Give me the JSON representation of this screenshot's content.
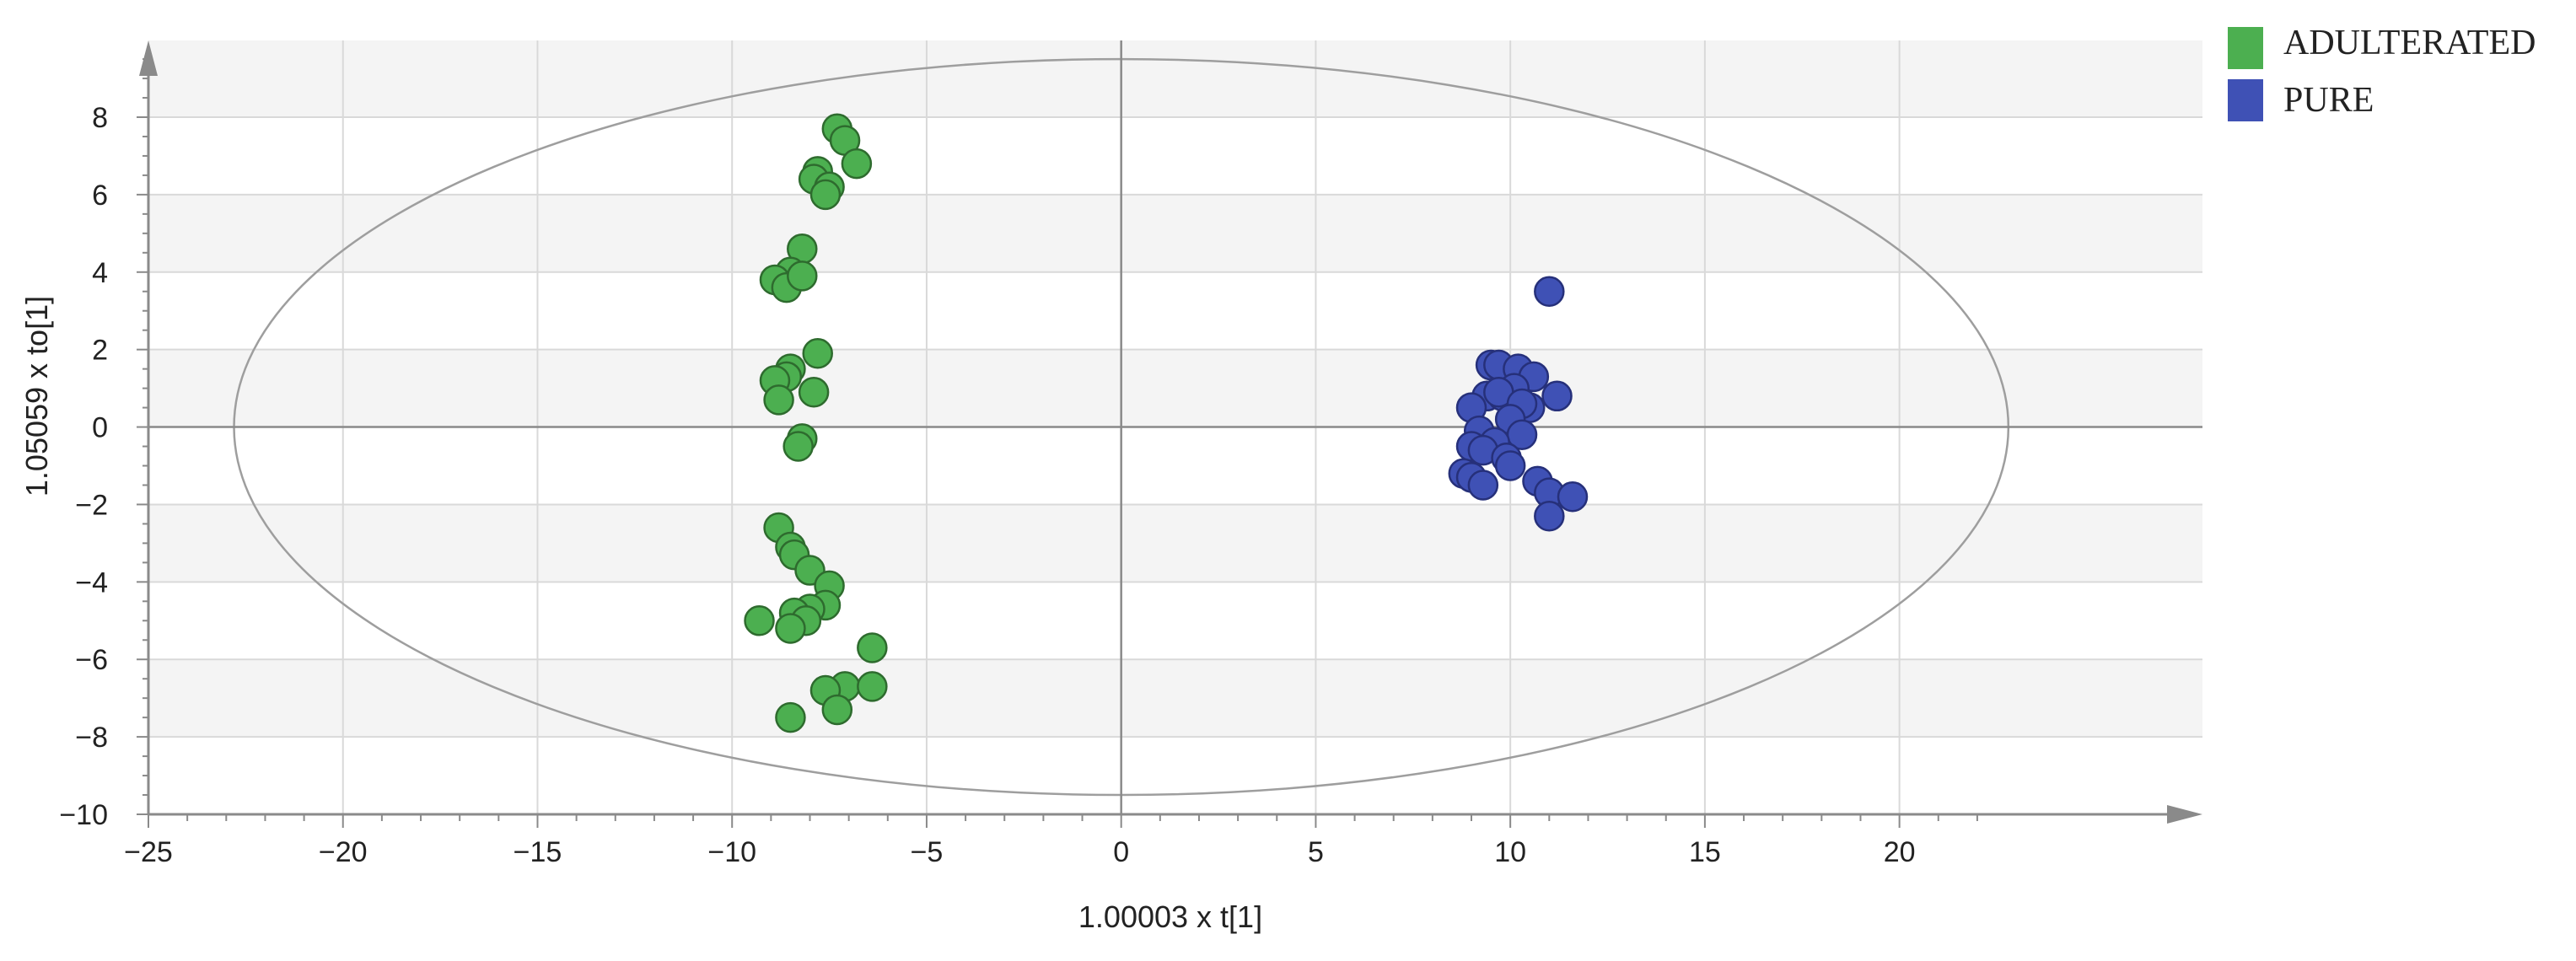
{
  "chart_data": {
    "type": "scatter",
    "title": "",
    "xlabel": "1.00003 x t[1]",
    "ylabel": "1.05059 x to[1]",
    "xlim": [
      -25,
      25
    ],
    "ylim": [
      -10,
      10
    ],
    "x_ticks": [
      -25,
      -20,
      -15,
      -10,
      -5,
      0,
      5,
      10,
      15,
      20
    ],
    "y_ticks": [
      -10,
      -8,
      -6,
      -4,
      -2,
      0,
      2,
      4,
      6,
      8
    ],
    "x_tick_labels": [
      "−25",
      "−20",
      "−15",
      "−10",
      "−5",
      "0",
      "5",
      "10",
      "15",
      "20"
    ],
    "y_tick_labels": [
      "−10",
      "−8",
      "−6",
      "−4",
      "−2",
      "0",
      "2",
      "4",
      "6",
      "8"
    ],
    "grid": true,
    "background_bands": true,
    "confidence_ellipse": {
      "semi_axis_x": 22.8,
      "semi_axis_y": 9.5
    },
    "legend_position": "top-right",
    "series": [
      {
        "name": "ADULTERATED",
        "color": "#4caf50",
        "edge_color": "#2e6b2e",
        "points": [
          [
            -7.3,
            7.7
          ],
          [
            -7.1,
            7.4
          ],
          [
            -6.8,
            6.8
          ],
          [
            -7.8,
            6.6
          ],
          [
            -7.9,
            6.4
          ],
          [
            -7.5,
            6.2
          ],
          [
            -7.6,
            6.0
          ],
          [
            -8.2,
            4.6
          ],
          [
            -8.5,
            4.0
          ],
          [
            -8.9,
            3.8
          ],
          [
            -8.6,
            3.6
          ],
          [
            -8.2,
            3.9
          ],
          [
            -7.8,
            1.9
          ],
          [
            -8.5,
            1.5
          ],
          [
            -8.6,
            1.3
          ],
          [
            -8.9,
            1.2
          ],
          [
            -8.8,
            0.7
          ],
          [
            -7.9,
            0.9
          ],
          [
            -8.2,
            -0.3
          ],
          [
            -8.3,
            -0.5
          ],
          [
            -8.8,
            -2.6
          ],
          [
            -8.5,
            -3.1
          ],
          [
            -8.4,
            -3.3
          ],
          [
            -8.0,
            -3.7
          ],
          [
            -7.5,
            -4.1
          ],
          [
            -7.6,
            -4.6
          ],
          [
            -8.0,
            -4.7
          ],
          [
            -8.4,
            -4.8
          ],
          [
            -8.1,
            -5.0
          ],
          [
            -9.3,
            -5.0
          ],
          [
            -8.5,
            -5.2
          ],
          [
            -6.4,
            -5.7
          ],
          [
            -7.1,
            -6.7
          ],
          [
            -7.6,
            -6.8
          ],
          [
            -6.4,
            -6.7
          ],
          [
            -7.3,
            -7.3
          ],
          [
            -8.5,
            -7.5
          ]
        ]
      },
      {
        "name": "PURE",
        "color": "#3f51b5",
        "edge_color": "#26307a",
        "points": [
          [
            11.0,
            3.5
          ],
          [
            9.5,
            1.6
          ],
          [
            9.7,
            1.6
          ],
          [
            10.2,
            1.5
          ],
          [
            10.6,
            1.3
          ],
          [
            9.4,
            0.8
          ],
          [
            9.8,
            0.8
          ],
          [
            10.1,
            1.0
          ],
          [
            9.7,
            0.9
          ],
          [
            11.2,
            0.8
          ],
          [
            10.5,
            0.5
          ],
          [
            10.3,
            0.6
          ],
          [
            9.0,
            0.5
          ],
          [
            10.0,
            0.2
          ],
          [
            9.2,
            -0.1
          ],
          [
            10.3,
            -0.2
          ],
          [
            9.0,
            -0.5
          ],
          [
            9.6,
            -0.4
          ],
          [
            9.3,
            -0.6
          ],
          [
            9.9,
            -0.8
          ],
          [
            10.0,
            -1.0
          ],
          [
            8.8,
            -1.2
          ],
          [
            9.0,
            -1.3
          ],
          [
            9.3,
            -1.5
          ],
          [
            10.7,
            -1.4
          ],
          [
            11.0,
            -1.7
          ],
          [
            11.6,
            -1.8
          ],
          [
            11.0,
            -2.3
          ]
        ]
      }
    ]
  },
  "legend": {
    "items": [
      {
        "label": "ADULTERATED",
        "color": "#4caf50"
      },
      {
        "label": "PURE",
        "color": "#3f51b5"
      }
    ]
  }
}
